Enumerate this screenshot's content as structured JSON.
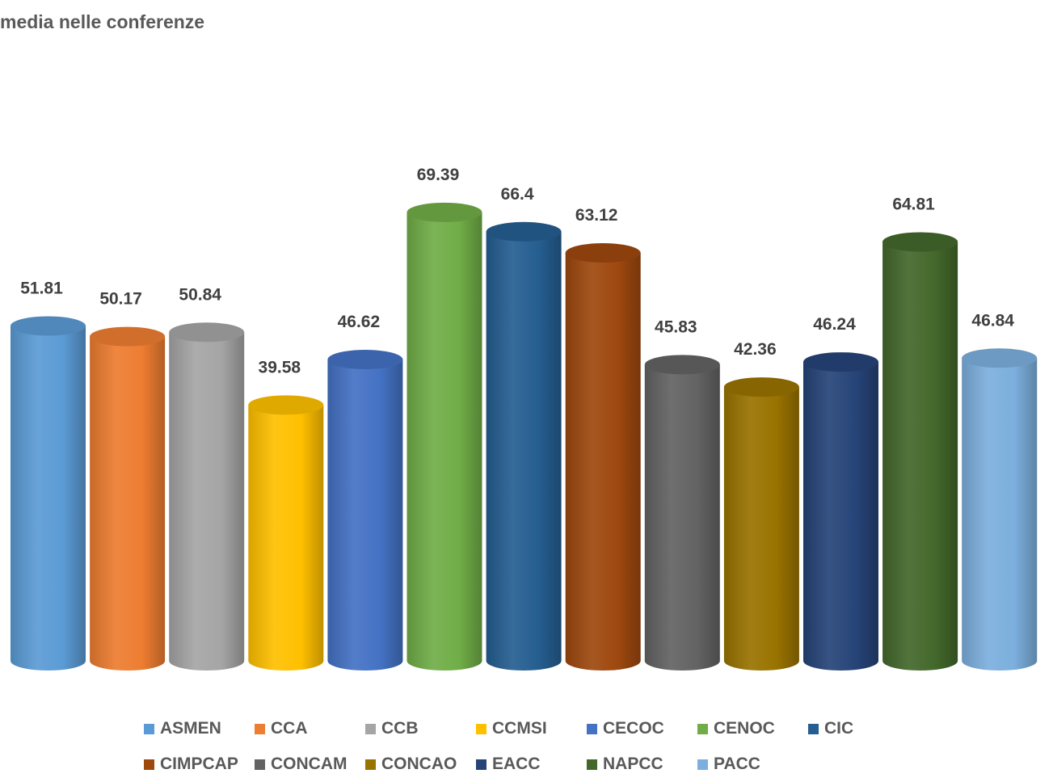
{
  "title": "media nelle conferenze",
  "chart_data": {
    "type": "bar",
    "style": "3d-cylinder",
    "title": "media nelle conferenze",
    "categories": [
      "ASMEN",
      "CCA",
      "CCB",
      "CCMSI",
      "CECOC",
      "CENOC",
      "CIC",
      "CIMPCAP",
      "CONCAM",
      "CONCAO",
      "EACC",
      "NAPCC",
      "PACC"
    ],
    "series": [
      {
        "name": "ASMEN",
        "value": 51.81,
        "label": "51.81",
        "color": "#5B9BD5"
      },
      {
        "name": "CCA",
        "value": 50.17,
        "label": "50.17",
        "color": "#ED7D31"
      },
      {
        "name": "CCB",
        "value": 50.84,
        "label": "50.84",
        "color": "#A5A5A5"
      },
      {
        "name": "CCMSI",
        "value": 39.58,
        "label": "39.58",
        "color": "#FFC000"
      },
      {
        "name": "CECOC",
        "value": 46.62,
        "label": "46.62",
        "color": "#4472C4"
      },
      {
        "name": "CENOC",
        "value": 69.39,
        "label": "69.39",
        "color": "#70AD47"
      },
      {
        "name": "CIC",
        "value": 66.4,
        "label": "66.4",
        "color": "#255E91"
      },
      {
        "name": "CIMPCAP",
        "value": 63.12,
        "label": "63.12",
        "color": "#9E480E"
      },
      {
        "name": "CONCAM",
        "value": 45.83,
        "label": "45.83",
        "color": "#636363"
      },
      {
        "name": "CONCAO",
        "value": 42.36,
        "label": "42.36",
        "color": "#997300"
      },
      {
        "name": "EACC",
        "value": 46.24,
        "label": "46.24",
        "color": "#264478"
      },
      {
        "name": "NAPCC",
        "value": 64.81,
        "label": "64.81",
        "color": "#43682B"
      },
      {
        "name": "PACC",
        "value": 46.84,
        "label": "46.84",
        "color": "#7CAFDD"
      }
    ],
    "ylim": [
      0,
      70
    ],
    "grid": false,
    "legend_position": "bottom",
    "xlabel": "",
    "ylabel": ""
  },
  "legend": {
    "rows": [
      [
        "ASMEN",
        "CCA",
        "CCB",
        "CCMSI",
        "CECOC",
        "CENOC",
        "CIC"
      ],
      [
        "CIMPCAP",
        "CONCAM",
        "CONCAO",
        "EACC",
        "NAPCC",
        "PACC"
      ]
    ]
  }
}
